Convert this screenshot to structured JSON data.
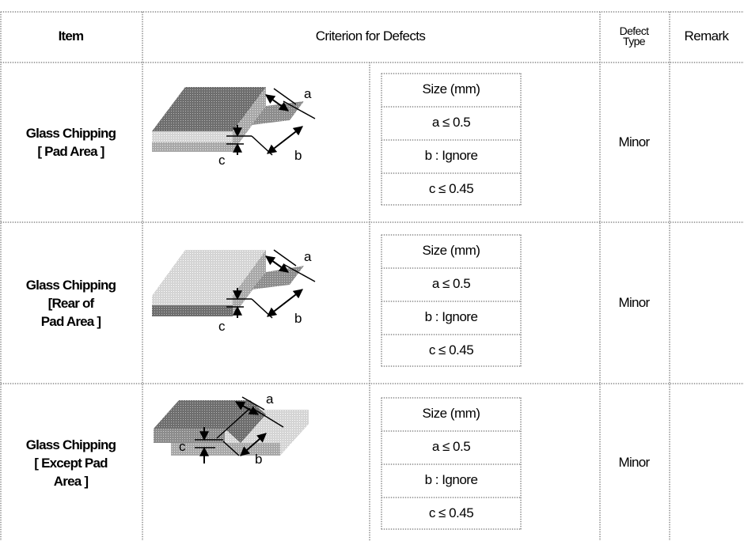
{
  "header": {
    "item": "Item",
    "criterion": "Criterion for Defects",
    "defect_type_line1": "Defect",
    "defect_type_line2": "Type",
    "remark": "Remark"
  },
  "rows": [
    {
      "item_lines": [
        "Glass Chipping",
        "[ Pad Area ]"
      ],
      "figure_labels": {
        "a": "a",
        "b": "b",
        "c": "c"
      },
      "spec": [
        "Size (mm)",
        "a ≤ 0.5",
        "b : Ignore",
        "c ≤ 0.45"
      ],
      "defect_type": "Minor",
      "remark": ""
    },
    {
      "item_lines": [
        "Glass Chipping",
        "[Rear of",
        "Pad Area ]"
      ],
      "figure_labels": {
        "a": "a",
        "b": "b",
        "c": "c"
      },
      "spec": [
        "Size (mm)",
        "a ≤ 0.5",
        "b : Ignore",
        "c ≤ 0.45"
      ],
      "defect_type": "Minor",
      "remark": ""
    },
    {
      "item_lines": [
        "Glass Chipping",
        "[ Except Pad",
        "Area ]"
      ],
      "figure_labels": {
        "a": "a",
        "b": "b",
        "c": "c"
      },
      "spec": [
        "Size (mm)",
        "a ≤ 0.5",
        "b : Ignore",
        "c ≤ 0.45"
      ],
      "defect_type": "Minor",
      "remark": ""
    }
  ]
}
